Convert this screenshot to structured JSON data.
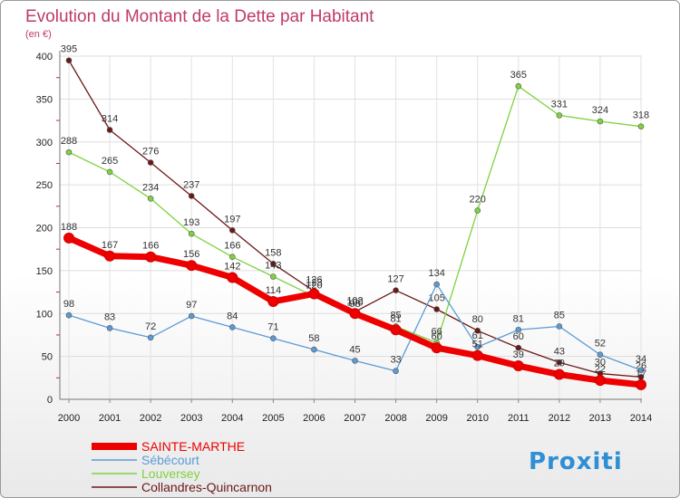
{
  "chart_data": {
    "type": "line",
    "title": "Evolution du Montant de la Dette par Habitant",
    "subtitle": "(en €)",
    "xlabel": "",
    "ylabel": "",
    "ylim": [
      0,
      400
    ],
    "yticks": [
      0,
      50,
      100,
      150,
      200,
      250,
      300,
      350,
      400
    ],
    "x": [
      "2000",
      "2001",
      "2002",
      "2003",
      "2004",
      "2005",
      "2006",
      "2007",
      "2008",
      "2009",
      "2010",
      "2011",
      "2012",
      "2013",
      "2014"
    ],
    "grid": true,
    "legend_position": "bottom-left",
    "series": [
      {
        "name": "SAINTE-MARTHE",
        "color": "#ee0000",
        "values": [
          188,
          167,
          166,
          156,
          142,
          114,
          123,
          100,
          81,
          60,
          51,
          39,
          29,
          22,
          17
        ]
      },
      {
        "name": "Sébécourt",
        "color": "#5b9bd5",
        "values": [
          98,
          83,
          72,
          97,
          84,
          71,
          58,
          45,
          33,
          134,
          61,
          81,
          85,
          52,
          34
        ]
      },
      {
        "name": "Louversey",
        "color": "#7ed23f",
        "values": [
          288,
          265,
          234,
          193,
          166,
          143,
          120,
          98,
          85,
          66,
          220,
          365,
          331,
          324,
          318
        ]
      },
      {
        "name": "Collandres-Quincarnon",
        "color": "#6b1818",
        "values": [
          395,
          314,
          276,
          237,
          197,
          158,
          126,
          102,
          127,
          105,
          80,
          60,
          43,
          30,
          26
        ]
      }
    ]
  },
  "logo": {
    "text": "Proxiti"
  }
}
